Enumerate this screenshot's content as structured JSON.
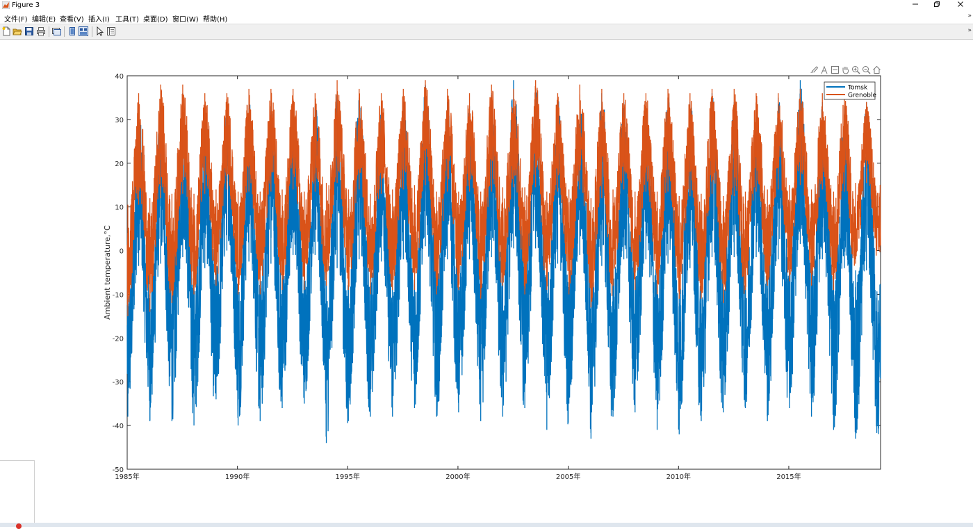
{
  "window": {
    "title": "Figure 3"
  },
  "menu": {
    "items": [
      "文件(F)",
      "编辑(E)",
      "查看(V)",
      "插入(I)",
      "工具(T)",
      "桌面(D)",
      "窗口(W)",
      "帮助(H)"
    ]
  },
  "toolbar": {
    "icons": [
      "new-figure-icon",
      "open-file-icon",
      "save-icon",
      "print-icon",
      "link-plot-icon",
      "hide-plot-tools-icon",
      "show-plot-tools-icon",
      "edit-plot-arrow-icon",
      "property-inspector-icon"
    ]
  },
  "axes_toolbar": {
    "icons": [
      "brush-icon",
      "data-tips-icon",
      "export-icon",
      "pan-hand-icon",
      "zoom-in-icon",
      "zoom-out-icon",
      "restore-view-home-icon"
    ]
  },
  "colors": {
    "tomsk": "#0072BD",
    "grenoble": "#D95319",
    "accent": "#0072BD"
  },
  "chart_data": {
    "type": "line",
    "title": "",
    "xlabel": "",
    "ylabel": "Ambient temperature,°C",
    "xlim": [
      "1985-01-01",
      "2019-03-01"
    ],
    "ylim": [
      -50,
      40
    ],
    "x_tick_labels": [
      "1985年",
      "1990年",
      "1995年",
      "2000年",
      "2005年",
      "2010年",
      "2015年"
    ],
    "y_tick_labels": [
      "40",
      "30",
      "20",
      "10",
      "0",
      "-10",
      "-20",
      "-30",
      "-40",
      "-50"
    ],
    "grid": false,
    "legend": {
      "position": "top-right",
      "entries": [
        "Tomsk",
        "Grenoble"
      ]
    },
    "series": [
      {
        "name": "Tomsk",
        "color": "#0072BD",
        "x": [
          "1985",
          "1986",
          "1987",
          "1988",
          "1989",
          "1990",
          "1991",
          "1992",
          "1993",
          "1994",
          "1995",
          "1996",
          "1997",
          "1998",
          "1999",
          "2000",
          "2001",
          "2002",
          "2003",
          "2004",
          "2005",
          "2006",
          "2007",
          "2008",
          "2009",
          "2010",
          "2011",
          "2012",
          "2013",
          "2014",
          "2015",
          "2016",
          "2017",
          "2018"
        ],
        "summer_max": [
          31,
          33,
          36,
          32,
          34,
          35,
          33,
          34,
          33,
          36,
          35,
          33,
          34,
          38,
          34,
          33,
          36,
          39,
          37,
          35,
          33,
          36,
          34,
          33,
          35,
          34,
          36,
          34,
          33,
          35,
          39,
          34,
          33,
          34
        ],
        "winter_min": [
          -38,
          -39,
          -39,
          -40,
          -34,
          -40,
          -39,
          -36,
          -35,
          -44,
          -39,
          -38,
          -38,
          -36,
          -38,
          -37,
          -39,
          -38,
          -36,
          -41,
          -35,
          -43,
          -38,
          -37,
          -41,
          -42,
          -39,
          -37,
          -36,
          -39,
          -36,
          -38,
          -41,
          -43
        ]
      },
      {
        "name": "Grenoble",
        "color": "#D95319",
        "x": [
          "1985",
          "1986",
          "1987",
          "1988",
          "1989",
          "1990",
          "1991",
          "1992",
          "1993",
          "1994",
          "1995",
          "1996",
          "1997",
          "1998",
          "1999",
          "2000",
          "2001",
          "2002",
          "2003",
          "2004",
          "2005",
          "2006",
          "2007",
          "2008",
          "2009",
          "2010",
          "2011",
          "2012",
          "2013",
          "2014",
          "2015",
          "2016",
          "2017",
          "2018"
        ],
        "summer_max": [
          36,
          38,
          38,
          36,
          36,
          37,
          37,
          37,
          36,
          39,
          37,
          36,
          37,
          39,
          37,
          36,
          38,
          37,
          39,
          36,
          38,
          37,
          36,
          36,
          37,
          36,
          37,
          37,
          36,
          36,
          37,
          36,
          36,
          34
        ],
        "winter_min": [
          -15,
          -14,
          -12,
          -10,
          -8,
          -10,
          -10,
          -9,
          -9,
          -8,
          -9,
          -10,
          -9,
          -9,
          -10,
          -9,
          -11,
          -8,
          -10,
          -9,
          -10,
          -13,
          -8,
          -9,
          -10,
          -11,
          -11,
          -12,
          -9,
          -8,
          -7,
          -8,
          -9,
          -3
        ]
      }
    ]
  }
}
